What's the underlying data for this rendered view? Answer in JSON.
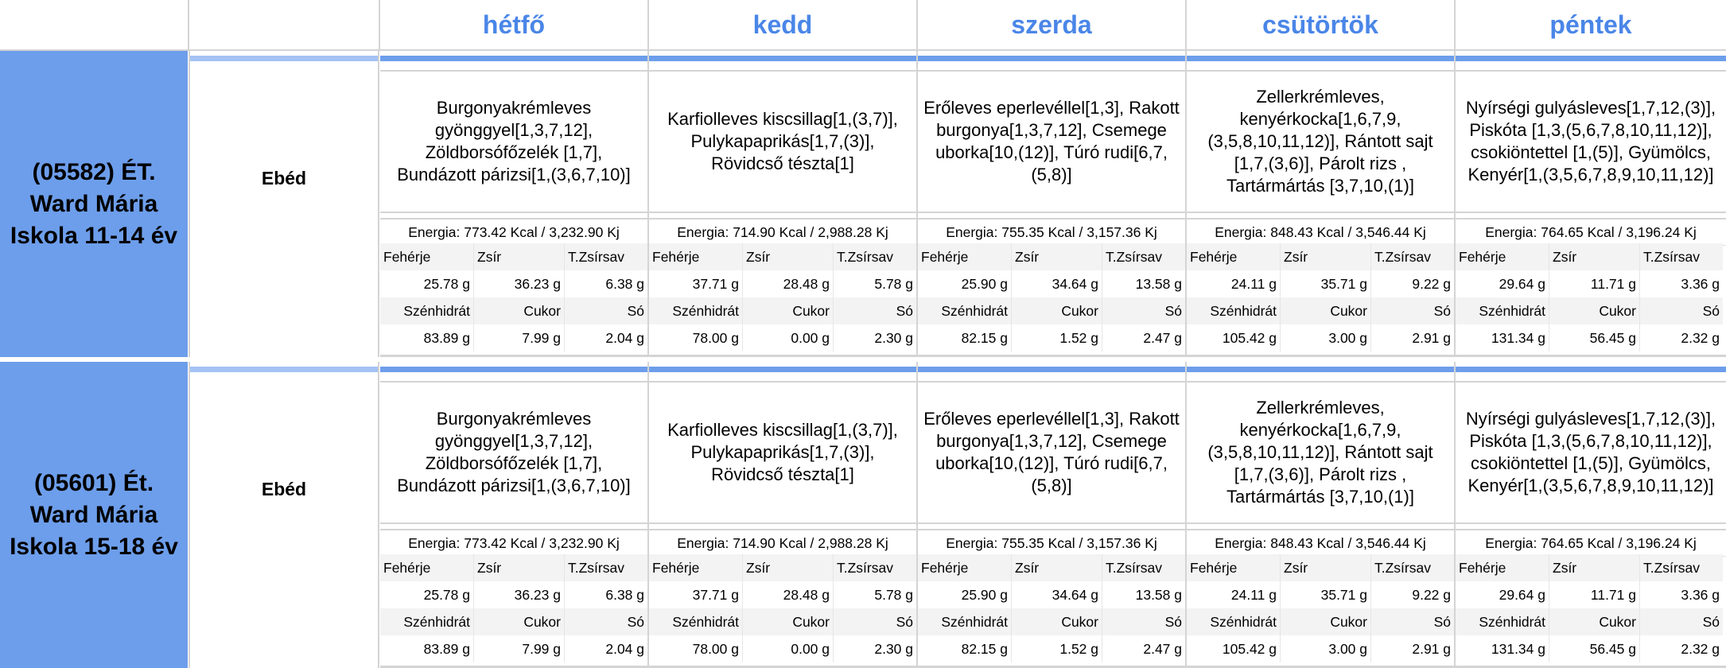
{
  "days": [
    "hétfő",
    "kedd",
    "szerda",
    "csütörtök",
    "péntek"
  ],
  "labels": {
    "energy_prefix": "Energia: ",
    "protein": "Fehérje",
    "fat": "Zsír",
    "sat_fat": "T.Zsírsav",
    "carbs": "Szénhidrát",
    "sugar": "Cukor",
    "salt": "Só"
  },
  "groups": [
    {
      "name": "(05582) ÉT. Ward Mária Iskola 11-14 év",
      "meal": "Ebéd",
      "entries": [
        {
          "menu": "Burgonyakrémleves gyönggyel[1,3,7,12], Zöldborsófőzelék [1,7], Bundázott párizsi[1,(3,6,7,10)]",
          "energy": "Energia: 773.42 Kcal / 3,232.90 Kj",
          "protein": "25.78 g",
          "fat": "36.23 g",
          "sat_fat": "6.38 g",
          "carbs": "83.89 g",
          "sugar": "7.99 g",
          "salt": "2.04 g"
        },
        {
          "menu": "Karfiolleves kiscsillag[1,(3,7)], Pulykapaprikás[1,7,(3)], Rövidcső tészta[1]",
          "energy": "Energia: 714.90 Kcal / 2,988.28 Kj",
          "protein": "37.71 g",
          "fat": "28.48 g",
          "sat_fat": "5.78 g",
          "carbs": "78.00 g",
          "sugar": "0.00 g",
          "salt": "2.30 g"
        },
        {
          "menu": "Erőleves eperlevéllel[1,3], Rakott burgonya[1,3,7,12], Csemege uborka[10,(12)], Túró rudi[6,7,(5,8)]",
          "energy": "Energia: 755.35 Kcal / 3,157.36 Kj",
          "protein": "25.90 g",
          "fat": "34.64 g",
          "sat_fat": "13.58 g",
          "carbs": "82.15 g",
          "sugar": "1.52 g",
          "salt": "2.47 g"
        },
        {
          "menu": "Zellerkrémleves, kenyérkocka[1,6,7,9,(3,5,8,10,11,12)], Rántott sajt [1,7,(3,6)], Párolt rizs , Tartármártás [3,7,10,(1)]",
          "energy": "Energia: 848.43 Kcal / 3,546.44 Kj",
          "protein": "24.11 g",
          "fat": "35.71 g",
          "sat_fat": "9.22 g",
          "carbs": "105.42 g",
          "sugar": "3.00 g",
          "salt": "2.91 g"
        },
        {
          "menu": "Nyírségi gulyásleves[1,7,12,(3)], Piskóta [1,3,(5,6,7,8,10,11,12)], csokiöntettel [1,(5)], Gyümölcs, Kenyér[1,(3,5,6,7,8,9,10,11,12)]",
          "energy": "Energia: 764.65 Kcal / 3,196.24 Kj",
          "protein": "29.64 g",
          "fat": "11.71 g",
          "sat_fat": "3.36 g",
          "carbs": "131.34 g",
          "sugar": "56.45 g",
          "salt": "2.32 g"
        }
      ]
    },
    {
      "name": "(05601) Ét. Ward Mária Iskola 15-18 év",
      "meal": "Ebéd",
      "entries": [
        {
          "menu": "Burgonyakrémleves gyönggyel[1,3,7,12], Zöldborsófőzelék [1,7], Bundázott párizsi[1,(3,6,7,10)]",
          "energy": "Energia: 773.42 Kcal / 3,232.90 Kj",
          "protein": "25.78 g",
          "fat": "36.23 g",
          "sat_fat": "6.38 g",
          "carbs": "83.89 g",
          "sugar": "7.99 g",
          "salt": "2.04 g"
        },
        {
          "menu": "Karfiolleves kiscsillag[1,(3,7)], Pulykapaprikás[1,7,(3)], Rövidcső tészta[1]",
          "energy": "Energia: 714.90 Kcal / 2,988.28 Kj",
          "protein": "37.71 g",
          "fat": "28.48 g",
          "sat_fat": "5.78 g",
          "carbs": "78.00 g",
          "sugar": "0.00 g",
          "salt": "2.30 g"
        },
        {
          "menu": "Erőleves eperlevéllel[1,3], Rakott burgonya[1,3,7,12], Csemege uborka[10,(12)], Túró rudi[6,7,(5,8)]",
          "energy": "Energia: 755.35 Kcal / 3,157.36 Kj",
          "protein": "25.90 g",
          "fat": "34.64 g",
          "sat_fat": "13.58 g",
          "carbs": "82.15 g",
          "sugar": "1.52 g",
          "salt": "2.47 g"
        },
        {
          "menu": "Zellerkrémleves, kenyérkocka[1,6,7,9,(3,5,8,10,11,12)], Rántott sajt [1,7,(3,6)], Párolt rizs , Tartármártás [3,7,10,(1)]",
          "energy": "Energia: 848.43 Kcal / 3,546.44 Kj",
          "protein": "24.11 g",
          "fat": "35.71 g",
          "sat_fat": "9.22 g",
          "carbs": "105.42 g",
          "sugar": "3.00 g",
          "salt": "2.91 g"
        },
        {
          "menu": "Nyírségi gulyásleves[1,7,12,(3)], Piskóta [1,3,(5,6,7,8,10,11,12)], csokiöntettel [1,(5)], Gyümölcs, Kenyér[1,(3,5,6,7,8,9,10,11,12)]",
          "energy": "Energia: 764.65 Kcal / 3,196.24 Kj",
          "protein": "29.64 g",
          "fat": "11.71 g",
          "sat_fat": "3.36 g",
          "carbs": "131.34 g",
          "sugar": "56.45 g",
          "salt": "2.32 g"
        }
      ]
    }
  ]
}
